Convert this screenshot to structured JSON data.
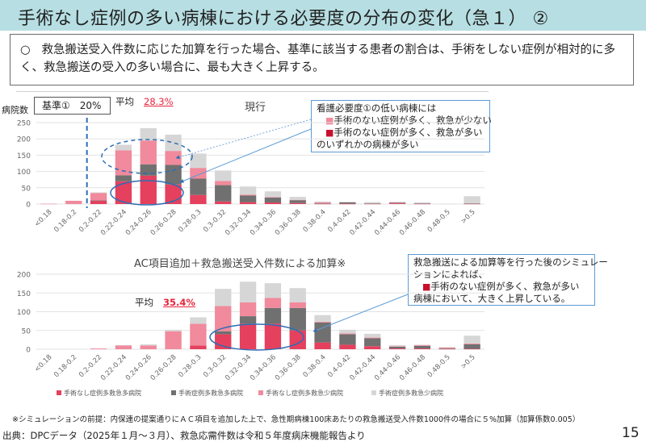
{
  "title": "手術なし症例の多い病棟における必要度の分布の変化（急１） ②",
  "summary": {
    "bullet": "○",
    "text": "救急搬送受入件数に応じた加算を行った場合、基準に該当する患者の割合は、手術をしない症例が相対的に多く、救急搬送の受入の多い場合に、最も大きく上昇する。"
  },
  "top_panel": {
    "y_axis_label": "病院数",
    "kijun_label": "基準①　20%",
    "avg_label": "平均",
    "avg_value": "28.3%",
    "chart_title": "現行",
    "callout": {
      "line1": "看護必要度①の低い病棟には",
      "line2": "手術のない症例が多く、救急が少ない",
      "line3": "手術のない症例が多く、救急が多い",
      "line4": "のいずれかの病棟が多い"
    }
  },
  "bottom_panel": {
    "chart_title": "AC項目追加＋救急搬送受入件数による加算※",
    "avg_label": "平均",
    "avg_value": "35.4%",
    "callout": {
      "line1": "救急搬送による加算等を行った後のシミュレー",
      "line2": "ションによれば、",
      "line3": "手術のない症例が多く、救急が多い",
      "line4": "病棟において、大きく上昇している。"
    }
  },
  "colors": {
    "no_surgery_many_emergency": "#e5405e",
    "surgery_many_emergency": "#707070",
    "no_surgery_few_emergency": "#f08a9c",
    "surgery_few_emergency": "#d6d6d6",
    "annotation_blue": "#2e6db4",
    "avg_red": "#e8243c",
    "title_bg": "#b7dfe3"
  },
  "legend_square": "■",
  "note": "※シミュレーションの前提：内保連の提案通りにＡＣ項目を追加した上で、急性期病棟100床あたりの救急搬送受入件数1000件の場合に５%加算（加算係数0.005）",
  "source": "出典：DPCデータ（2025年１月～３月）、救急応需件数は令和５年度病床機能報告より",
  "page_number": "15",
  "chart_data": [
    {
      "type": "bar",
      "stacked": true,
      "title": "現行",
      "xlabel": "",
      "ylabel": "病院数",
      "ylim": [
        0,
        250
      ],
      "yticks": [
        0,
        50,
        100,
        150,
        200,
        250
      ],
      "grid": true,
      "reference_line": {
        "label": "基準①　20%",
        "between_categories": [
          "0.18-0.2",
          "0.2-0.22"
        ]
      },
      "average": "28.3%",
      "categories": [
        "<0.18",
        "0.18-0.2",
        "0.2-0.22",
        "0.22-0.24",
        "0.24-0.26",
        "0.26-0.28",
        "0.28-0.3",
        "0.3-0.32",
        "0.32-0.34",
        "0.34-0.36",
        "0.36-0.38",
        "0.38-0.4",
        "0.4-0.42",
        "0.42-0.44",
        "0.44-0.46",
        "0.46-0.48",
        "0.48-0.5",
        ">0.5"
      ],
      "series": [
        {
          "name": "手術なし症例多救急多病院",
          "values": [
            0,
            0,
            10,
            70,
            87,
            60,
            28,
            8,
            6,
            5,
            3,
            1,
            1,
            1,
            2,
            1,
            0,
            1
          ]
        },
        {
          "name": "手術症例多救急多病院",
          "values": [
            0,
            0,
            1,
            18,
            35,
            60,
            50,
            50,
            20,
            15,
            9,
            1,
            4,
            1,
            2,
            1,
            0,
            1
          ]
        },
        {
          "name": "手術なし症例多救急少病院",
          "values": [
            1,
            10,
            23,
            77,
            73,
            43,
            33,
            13,
            3,
            1,
            1,
            3,
            0,
            0,
            1,
            0,
            0,
            0
          ]
        },
        {
          "name": "手術症例多救急少病院",
          "values": [
            0,
            0,
            2,
            17,
            38,
            50,
            44,
            32,
            25,
            18,
            9,
            3,
            2,
            4,
            2,
            3,
            1,
            22
          ]
        }
      ],
      "legend": "bottom"
    },
    {
      "type": "bar",
      "stacked": true,
      "title": "AC項目追加＋救急搬送受入件数による加算※",
      "xlabel": "",
      "ylabel": "",
      "ylim": [
        0,
        200
      ],
      "yticks": [
        0,
        50,
        100,
        150,
        200
      ],
      "grid": true,
      "average": "35.4%",
      "categories": [
        "<0.18",
        "0.18-0.2",
        "0.2-0.22",
        "0.22-0.24",
        "0.24-0.26",
        "0.26-0.28",
        "0.28-0.3",
        "0.3-0.32",
        "0.32-0.34",
        "0.34-0.36",
        "0.36-0.38",
        "0.38-0.4",
        "0.4-0.42",
        "0.42-0.44",
        "0.44-0.46",
        "0.46-0.48",
        "0.48-0.5",
        ">0.5"
      ],
      "series": [
        {
          "name": "手術なし症例多救急多病院",
          "values": [
            0,
            0,
            0,
            0,
            0,
            0,
            10,
            40,
            68,
            68,
            50,
            18,
            12,
            8,
            2,
            2,
            1,
            1
          ]
        },
        {
          "name": "手術症例多救急多病院",
          "values": [
            0,
            0,
            0,
            0,
            0,
            0,
            0,
            8,
            20,
            42,
            60,
            53,
            28,
            21,
            5,
            7,
            1,
            12
          ]
        },
        {
          "name": "手術なし症例多救急少病院",
          "values": [
            0,
            0,
            2,
            10,
            10,
            48,
            58,
            67,
            37,
            27,
            15,
            2,
            2,
            2,
            1,
            2,
            2,
            2
          ]
        },
        {
          "name": "手術症例多救急少病院",
          "values": [
            0,
            0,
            0,
            1,
            3,
            4,
            17,
            46,
            55,
            39,
            38,
            18,
            10,
            10,
            3,
            1,
            2,
            21
          ]
        }
      ],
      "legend": "bottom"
    }
  ]
}
